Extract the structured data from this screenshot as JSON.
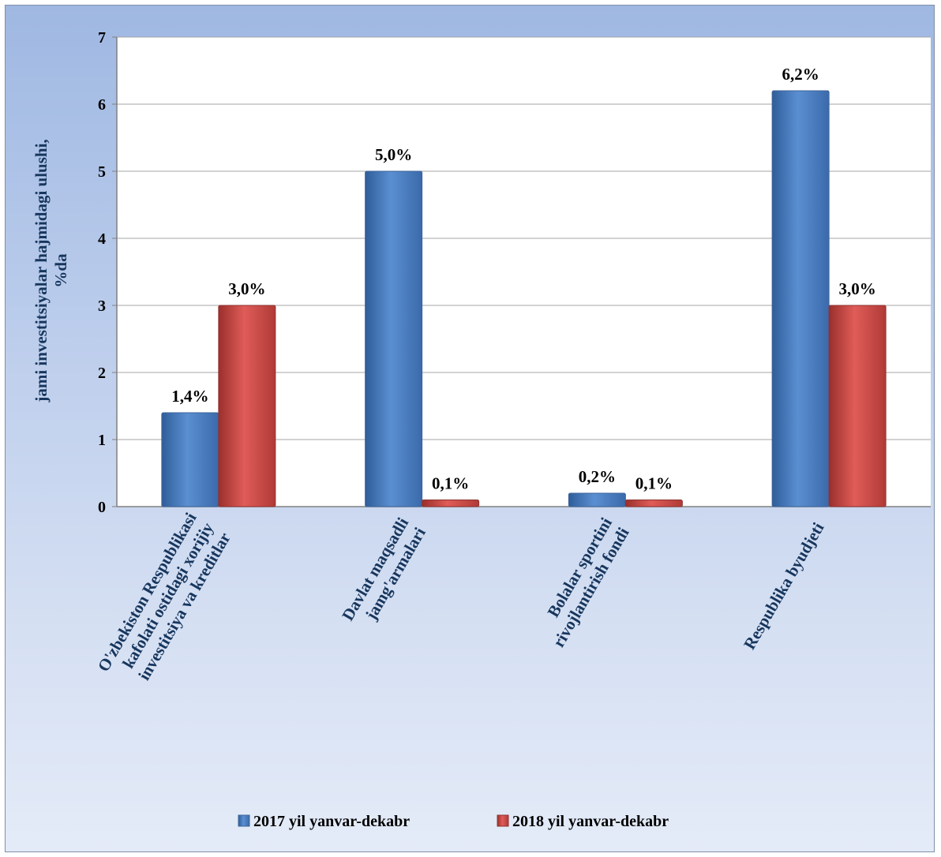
{
  "chart_data": {
    "type": "bar",
    "title": "",
    "ylabel": "jami investitsiyalar hajmidagi ulushi, %da",
    "ylim": [
      0,
      7
    ],
    "yticks": [
      "0",
      "1",
      "2",
      "3",
      "4",
      "5",
      "6",
      "7"
    ],
    "grid": true,
    "legend_position": "bottom",
    "categories": [
      [
        "O'zbekiston Respublikasi",
        "kafolati ostidagi xorijiy",
        "investitsiya va kreditlar"
      ],
      [
        "Davlat maqsadli",
        "jamg'armalari"
      ],
      [
        "Bolalar sportini",
        "rivojlantirish fondi"
      ],
      [
        "Respublika byudjeti"
      ]
    ],
    "series": [
      {
        "name": "2017 yil yanvar-dekabr",
        "color": "#4f81bd",
        "values": [
          1.4,
          5.0,
          0.2,
          6.2
        ],
        "labels": [
          "1,4%",
          "5,0%",
          "0,2%",
          "6,2%"
        ]
      },
      {
        "name": "2018 yil yanvar-dekabr",
        "color": "#c0504d",
        "values": [
          3.0,
          0.1,
          0.1,
          3.0
        ],
        "labels": [
          "3,0%",
          "0,1%",
          "0,1%",
          "3,0%"
        ]
      }
    ]
  }
}
